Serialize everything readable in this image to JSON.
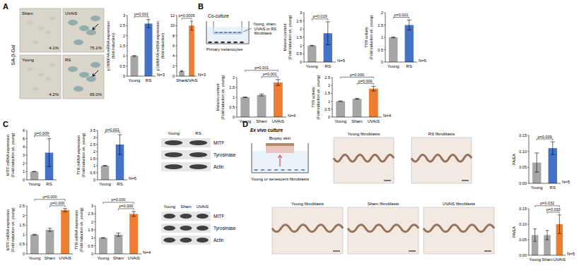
{
  "chart_data": [
    {
      "type": "bar",
      "y_label": [
        "p16INK4A mRNA expression",
        "(fold induction)"
      ],
      "categories": [
        "Young",
        "RS"
      ],
      "values": [
        1,
        2.6
      ],
      "errors": [
        0.02,
        0.2
      ],
      "colors": [
        "#a6a6a6",
        "#4472c4"
      ],
      "ylim": [
        0,
        3
      ],
      "yticks": [
        0,
        0.5,
        1,
        1.5,
        2,
        2.5,
        3
      ],
      "annotations": [
        {
          "text": "p=0.001",
          "from": 0,
          "to": 1
        },
        {
          "text": "N=3"
        }
      ]
    },
    {
      "type": "bar",
      "y_label": [
        "p16INK4A mRNA expression",
        "(fold induction)"
      ],
      "categories": [
        "Sham",
        "UVAiS"
      ],
      "values": [
        1,
        10
      ],
      "errors": [
        0.1,
        0.9
      ],
      "colors": [
        "#a6a6a6",
        "#ed7d31"
      ],
      "ylim": [
        0,
        12
      ],
      "yticks": [
        0,
        2,
        4,
        6,
        8,
        10,
        12
      ],
      "annotations": [
        {
          "text": "p=0.0005",
          "from": 0,
          "to": 1
        },
        {
          "text": "N=3"
        }
      ]
    },
    {
      "type": "bar",
      "y_label": [
        "Melanin content",
        "(Fold induction vs. young)"
      ],
      "categories": [
        "Young",
        "RS"
      ],
      "values": [
        1,
        1.75
      ],
      "errors": [
        0.02,
        0.7
      ],
      "colors": [
        "#a6a6a6",
        "#4472c4"
      ],
      "ylim": [
        0,
        3
      ],
      "yticks": [
        0,
        0.5,
        1,
        1.5,
        2,
        2.5,
        3
      ],
      "annotations": [
        {
          "text": "p=0.029",
          "from": 0,
          "to": 1
        },
        {
          "text": "N=5"
        }
      ]
    },
    {
      "type": "bar",
      "y_label": [
        "TYR activity",
        "(Fold induction vs. young)"
      ],
      "categories": [
        "Young",
        "RS"
      ],
      "values": [
        1,
        1.5
      ],
      "errors": [
        0.02,
        0.2
      ],
      "colors": [
        "#a6a6a6",
        "#4472c4"
      ],
      "ylim": [
        0,
        2
      ],
      "yticks": [
        0,
        0.5,
        1,
        1.5,
        2
      ],
      "annotations": [
        {
          "text": "p=0.001",
          "from": 0,
          "to": 1
        },
        {
          "text": "N=5"
        }
      ]
    },
    {
      "type": "bar",
      "y_label": [
        "Melanin content",
        "(Fold induction vs. young)"
      ],
      "categories": [
        "Young",
        "Sham",
        "UVAiS"
      ],
      "values": [
        1,
        1.12,
        1.75
      ],
      "errors": [
        0.02,
        0.05,
        0.15
      ],
      "colors": [
        "#a6a6a6",
        "#a6a6a6",
        "#ed7d31"
      ],
      "ylim": [
        0,
        2
      ],
      "yticks": [
        0,
        0.5,
        1,
        1.5,
        2
      ],
      "annotations": [
        {
          "text": "p=0.001",
          "from": 0,
          "to": 2
        },
        {
          "text": "p=0.001",
          "from": 1,
          "to": 2
        },
        {
          "text": "N=4"
        }
      ]
    },
    {
      "type": "bar",
      "y_label": [
        "TYR activity",
        "(Fold induction vs. young)"
      ],
      "categories": [
        "Young",
        "Sham",
        "UVAiS"
      ],
      "values": [
        1,
        1.15,
        1.8
      ],
      "errors": [
        0.02,
        0.03,
        0.15
      ],
      "colors": [
        "#a6a6a6",
        "#a6a6a6",
        "#ed7d31"
      ],
      "ylim": [
        0,
        2.5
      ],
      "yticks": [
        0,
        0.5,
        1,
        1.5,
        2,
        2.5
      ],
      "annotations": [
        {
          "text": "p=0.000",
          "from": 0,
          "to": 2
        },
        {
          "text": "p=0.000",
          "from": 1,
          "to": 2
        },
        {
          "text": "N=4"
        }
      ]
    },
    {
      "type": "bar",
      "y_label": [
        "MITF mRNA expression",
        "(Fold induction vs. young)"
      ],
      "categories": [
        "Young",
        "RS"
      ],
      "values": [
        1,
        3.3
      ],
      "errors": [
        0.02,
        1.7
      ],
      "colors": [
        "#a6a6a6",
        "#4472c4"
      ],
      "ylim": [
        0,
        6
      ],
      "yticks": [
        0,
        1,
        2,
        3,
        4,
        5,
        6
      ],
      "annotations": [
        {
          "text": "p=0.009",
          "from": 0,
          "to": 1
        }
      ]
    },
    {
      "type": "bar",
      "y_label": [
        "TYR mRNA expression",
        "(Fold induction vs. young)"
      ],
      "categories": [
        "Young",
        "RS"
      ],
      "values": [
        1,
        2.5
      ],
      "errors": [
        0.02,
        0.7
      ],
      "colors": [
        "#a6a6a6",
        "#4472c4"
      ],
      "ylim": [
        0,
        3.5
      ],
      "yticks": [
        0,
        0.5,
        1,
        1.5,
        2,
        2.5,
        3,
        3.5
      ],
      "annotations": [
        {
          "text": "p=0.001",
          "from": 0,
          "to": 1
        },
        {
          "text": "N=5"
        }
      ]
    },
    {
      "type": "bar",
      "y_label": [
        "MITF mRNA expression",
        "(Fold induction vs. young)"
      ],
      "categories": [
        "Young",
        "Sham",
        "UVAiS"
      ],
      "values": [
        1,
        1.25,
        2.28
      ],
      "errors": [
        0.02,
        0.08,
        0.08
      ],
      "colors": [
        "#a6a6a6",
        "#a6a6a6",
        "#ed7d31"
      ],
      "ylim": [
        0,
        2.5
      ],
      "yticks": [
        0,
        0.5,
        1,
        1.5,
        2,
        2.5
      ],
      "annotations": [
        {
          "text": "p=0.000",
          "from": 0,
          "to": 2
        },
        {
          "text": "p=0.000",
          "from": 1,
          "to": 2
        }
      ]
    },
    {
      "type": "bar",
      "y_label": [
        "TYR mRNA expression",
        "(Fold induction vs. young)"
      ],
      "categories": [
        "Young",
        "Sham",
        "UVAiS"
      ],
      "values": [
        1,
        1.2,
        2.5
      ],
      "errors": [
        0.02,
        0.1,
        0.15
      ],
      "colors": [
        "#a6a6a6",
        "#a6a6a6",
        "#ed7d31"
      ],
      "ylim": [
        0,
        3
      ],
      "yticks": [
        0,
        0.5,
        1,
        1.5,
        2,
        2.5,
        3
      ],
      "annotations": [
        {
          "text": "p=0.000",
          "from": 0,
          "to": 2
        },
        {
          "text": "p=0.000",
          "from": 1,
          "to": 2
        },
        {
          "text": "N=4"
        }
      ]
    },
    {
      "type": "bar",
      "y_label": [
        "PA/EA"
      ],
      "categories": [
        "Young",
        "RS"
      ],
      "values": [
        0.065,
        0.11
      ],
      "errors": [
        0.03,
        0.02
      ],
      "colors": [
        "#a6a6a6",
        "#4472c4"
      ],
      "ylim": [
        0,
        0.15
      ],
      "yticks": [
        {
          "value": 0,
          "label": "0.00"
        },
        {
          "value": 0.05,
          "label": "0.05"
        },
        {
          "value": 0.1,
          "label": "0.10"
        },
        {
          "value": 0.15,
          "label": "0.15"
        }
      ],
      "annotations": [
        {
          "text": "p=0.009",
          "from": 0,
          "to": 1
        },
        {
          "text": "N=5"
        }
      ]
    },
    {
      "type": "bar",
      "y_label": [
        "PA/EA"
      ],
      "categories": [
        "Young",
        "Sham",
        "UVAiS"
      ],
      "values": [
        0.065,
        0.065,
        0.1
      ],
      "errors": [
        0.02,
        0.015,
        0.03
      ],
      "colors": [
        "#a6a6a6",
        "#a6a6a6",
        "#ed7d31"
      ],
      "ylim": [
        0,
        0.15
      ],
      "yticks": [
        {
          "value": 0,
          "label": "0.00"
        },
        {
          "value": 0.05,
          "label": "0.05"
        },
        {
          "value": 0.1,
          "label": "0.10"
        },
        {
          "value": 0.15,
          "label": "0.15"
        }
      ],
      "annotations": [
        {
          "text": "p=0.032",
          "from": 0,
          "to": 2
        },
        {
          "text": "p=0.033",
          "from": 1,
          "to": 2
        },
        {
          "text": "N=5"
        }
      ]
    }
  ],
  "figure": {
    "panel_labels": [
      "A",
      "B",
      "C",
      "D"
    ],
    "sa_gal": {
      "label": "SA-β-Gal",
      "images": [
        {
          "name": "Sham",
          "percent": "4.1%"
        },
        {
          "name": "UVAiS",
          "percent": "75.1%"
        },
        {
          "name": "Young",
          "percent": "4.2%"
        },
        {
          "name": "RS",
          "percent": "65.0%"
        }
      ]
    },
    "coculture": {
      "title": "Co-culture",
      "upper": "Young, sham, UVAiS or RS fibroblasts",
      "lower": "Primary melanocytes"
    },
    "blots": [
      {
        "lanes": [
          "Young",
          "RS"
        ],
        "bands": [
          "MITF",
          "Tyrosinase",
          "Actin"
        ]
      },
      {
        "lanes": [
          "Young",
          "Sham",
          "UVAiS"
        ],
        "bands": [
          "MITF",
          "Tyrosinase",
          "Actin"
        ]
      }
    ],
    "ex_vivo": {
      "title": "Ex vivo culture",
      "upper": "Biopsy skin",
      "lower": "Young or senescent fibroblasts"
    },
    "ihc": {
      "upper": [
        "Young fibroblasts",
        "RS fibroblasts"
      ],
      "lower": [
        "Young fibroblasts",
        "Sham fibroblasts",
        "UVAiS fibroblasts"
      ]
    }
  }
}
